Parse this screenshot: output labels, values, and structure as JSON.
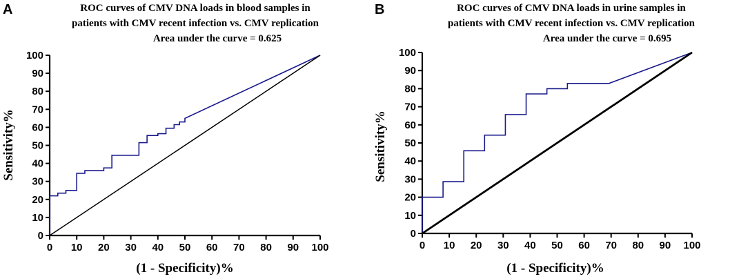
{
  "chart_data": [
    {
      "panel": "A",
      "type": "line",
      "title_lines": [
        "ROC curves of CMV DNA loads in  blood samples in",
        "patients with CMV recent infection vs. CMV  replication",
        "Area under the curve = 0.625"
      ],
      "xlabel": "(1 - Specificity)%",
      "ylabel": "Sensitivity%",
      "xlim": [
        0,
        100
      ],
      "ylim": [
        0,
        100
      ],
      "xticks": [
        0,
        10,
        20,
        30,
        40,
        50,
        60,
        70,
        80,
        90,
        100
      ],
      "yticks": [
        0,
        10,
        20,
        30,
        40,
        50,
        60,
        70,
        80,
        90,
        100
      ],
      "grid": false,
      "series": [
        {
          "name": "ROC curve",
          "color": "#1a1a8c",
          "x": [
            0,
            0,
            3,
            3,
            6,
            6,
            10,
            10,
            13,
            13,
            20,
            20,
            23,
            23,
            33,
            33,
            36,
            36,
            40,
            40,
            43,
            43,
            46,
            46,
            48,
            48,
            50,
            50,
            100
          ],
          "y": [
            0,
            22,
            22,
            23.5,
            23.5,
            25,
            25,
            34.5,
            34.5,
            36,
            36,
            37.5,
            37.5,
            44.5,
            44.5,
            51.5,
            51.5,
            55.5,
            55.5,
            56.5,
            56.5,
            59.5,
            59.5,
            61.5,
            61.5,
            63,
            63,
            65,
            100
          ]
        },
        {
          "name": "Reference line",
          "color": "#000000",
          "x": [
            0,
            100
          ],
          "y": [
            0,
            100
          ]
        }
      ]
    },
    {
      "panel": "B",
      "type": "line",
      "title_lines": [
        "ROC curves of CMV DNA loads in urine samples in",
        "patients with CMV recent infection vs. CMV  replication",
        "Area under the curve = 0.695"
      ],
      "xlabel": "(1 - Specificity)%",
      "ylabel": "Sensitivity%",
      "xlim": [
        0,
        100
      ],
      "ylim": [
        0,
        100
      ],
      "xticks": [
        0,
        10,
        20,
        30,
        40,
        50,
        60,
        70,
        80,
        90,
        100
      ],
      "yticks": [
        0,
        10,
        20,
        30,
        40,
        50,
        60,
        70,
        80,
        90,
        100
      ],
      "grid": false,
      "series": [
        {
          "name": "ROC curve",
          "color": "#1a1a8c",
          "x": [
            0,
            0,
            7.7,
            7.7,
            15.4,
            15.4,
            23.1,
            23.1,
            30.8,
            30.8,
            38.5,
            38.5,
            46.2,
            46.2,
            53.8,
            53.8,
            69.2,
            100
          ],
          "y": [
            0,
            20,
            20,
            28.6,
            28.6,
            45.7,
            45.7,
            54.3,
            54.3,
            65.7,
            65.7,
            77.1,
            77.1,
            80,
            80,
            82.9,
            82.9,
            100
          ]
        },
        {
          "name": "Reference line",
          "color": "#000000",
          "x": [
            0,
            100
          ],
          "y": [
            0,
            100
          ]
        }
      ]
    }
  ]
}
